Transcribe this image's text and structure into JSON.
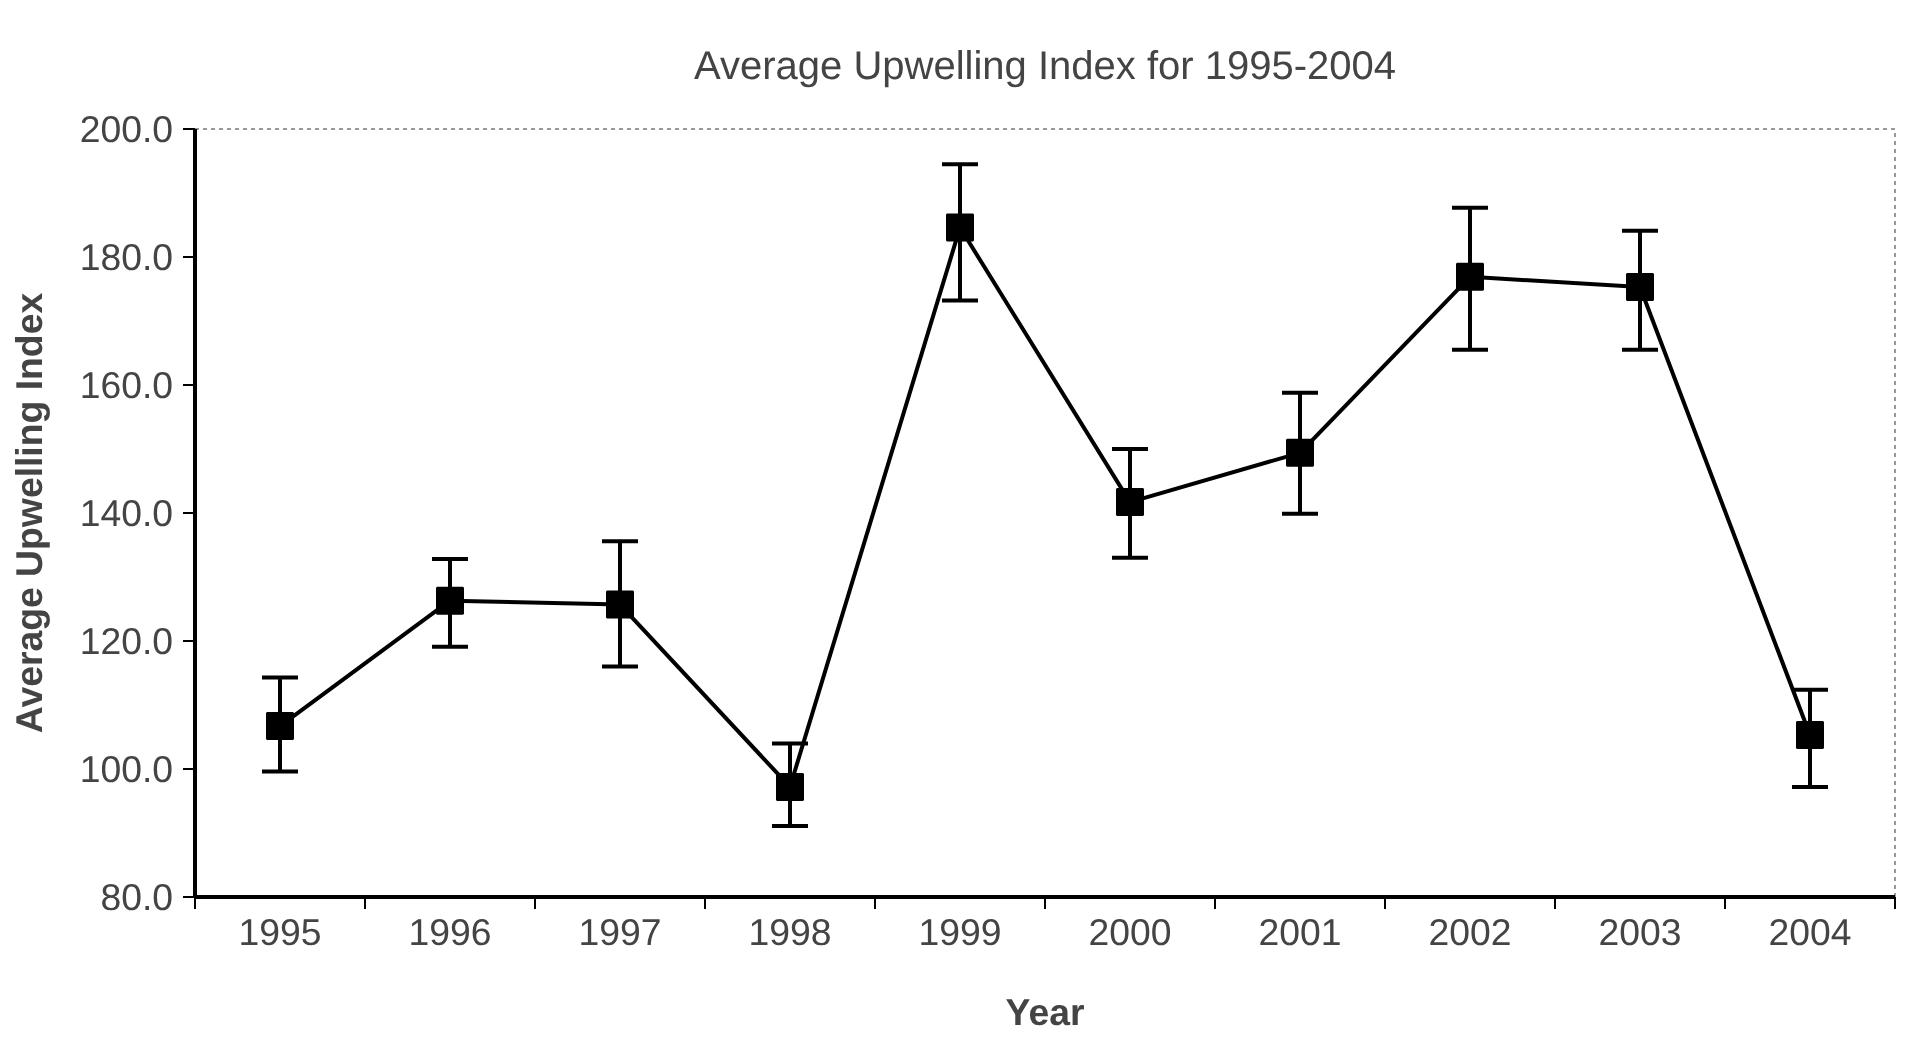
{
  "chart_data": {
    "type": "line",
    "title": "Average Upwelling Index for 1995-2004",
    "xlabel": "Year",
    "ylabel": "Average Upwelling Index",
    "categories": [
      "1995",
      "1996",
      "1997",
      "1998",
      "1999",
      "2000",
      "2001",
      "2002",
      "2003",
      "2004"
    ],
    "series": [
      {
        "color": "#000000",
        "values": [
          106.7,
          126.3,
          125.7,
          97.2,
          184.6,
          141.7,
          149.4,
          176.9,
          175.3,
          105.3
        ],
        "errors": [
          [
            99.6,
            114.3
          ],
          [
            119.1,
            132.8
          ],
          [
            116.0,
            135.6
          ],
          [
            91.1,
            104.0
          ],
          [
            173.2,
            194.5
          ],
          [
            133.0,
            150.0
          ],
          [
            139.9,
            158.8
          ],
          [
            165.5,
            187.7
          ],
          [
            165.5,
            184.1
          ],
          [
            97.2,
            112.4
          ]
        ]
      }
    ],
    "ylim": [
      80,
      200
    ],
    "yticks": [
      {
        "value": 80,
        "label": "80.0"
      },
      {
        "value": 100,
        "label": "100.0"
      },
      {
        "value": 120,
        "label": "120.0"
      },
      {
        "value": 140,
        "label": "140.0"
      },
      {
        "value": 160,
        "label": "160.0"
      },
      {
        "value": 180,
        "label": "180.0"
      },
      {
        "value": 200,
        "label": "200.0"
      }
    ],
    "marker": "square",
    "line_style": "solid",
    "grid": false
  }
}
